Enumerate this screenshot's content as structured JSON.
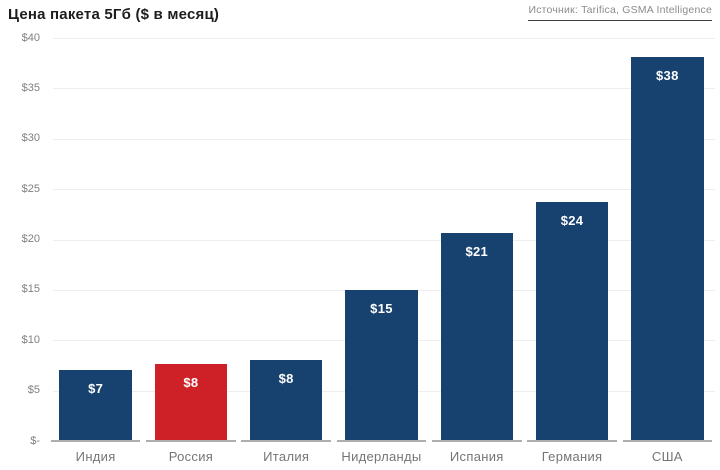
{
  "header": {
    "title": "Цена пакета 5Гб ($ в месяц)",
    "source": "Источник: Tarifica, GSMA Intelligence"
  },
  "colors": {
    "bar_blue": "#17426F",
    "bar_red": "#CE2127",
    "gridline": "#EEEEEE",
    "baseline": "#AEAEAE",
    "axis_text": "#7F7F7F",
    "category_text": "#757575",
    "title_text": "#1D1D1D",
    "source_text": "#8C8C8C",
    "value_text": "#FFFFFF"
  },
  "chart_data": {
    "type": "bar",
    "title": "Цена пакета 5Гб ($ в месяц)",
    "source": "Источник: Tarifica, GSMA Intelligence",
    "categories": [
      "Индия",
      "Россия",
      "Италия",
      "Нидерланды",
      "Испания",
      "Германия",
      "США"
    ],
    "values": [
      7,
      8,
      8,
      15,
      21,
      24,
      38
    ],
    "display_values": [
      6.9,
      7.5,
      7.9,
      14.9,
      20.5,
      23.6,
      38.0
    ],
    "value_labels": [
      "$7",
      "$8",
      "$8",
      "$15",
      "$21",
      "$24",
      "$38"
    ],
    "highlight_index": 1,
    "highlight_category": "Россия",
    "y_ticks": [
      "$40",
      "$35",
      "$30",
      "$25",
      "$20",
      "$15",
      "$10",
      "$5",
      "$-"
    ],
    "y_tick_values": [
      40,
      35,
      30,
      25,
      20,
      15,
      10,
      5,
      0
    ],
    "ylim": [
      0,
      40
    ],
    "xlabel": "",
    "ylabel": "",
    "grid": true,
    "legend": false
  }
}
